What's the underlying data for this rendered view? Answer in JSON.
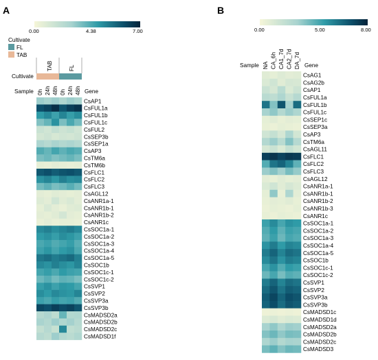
{
  "chart_data": [
    {
      "type": "heatmap",
      "panel_label": "A",
      "colorbar": {
        "min": 0.0,
        "max": 7.0,
        "ticks": [
          "0.00",
          "4.38",
          "7.00"
        ]
      },
      "annotation": {
        "legend_title": "Cultivate",
        "legend_items": [
          {
            "label": "FL",
            "color": "#5b9aa0"
          },
          {
            "label": "TAB",
            "color": "#e8b898"
          }
        ],
        "row_label": "Cultivate",
        "groups": [
          {
            "label": "TAB",
            "span": 3,
            "color": "#e8b898"
          },
          {
            "label": "FL",
            "span": 3,
            "color": "#5b9aa0"
          }
        ]
      },
      "sample_label": "Sample",
      "gene_label": "Gene",
      "columns": [
        "0h",
        "24h",
        "48h",
        "0h",
        "24h",
        "48h"
      ],
      "rows": [
        "CsAP1",
        "CsFUL1a",
        "CsFUL1b",
        "CsFUL1c",
        "CsFUL2",
        "CsSEP3b",
        "CsSEP1a",
        "CsAP3",
        "CsTM6a",
        "CsTM6b",
        "CsFLC1",
        "CsFLC2",
        "CsFLC3",
        "CsAGL12",
        "CsANR1a-1",
        "CsANR1b-1",
        "CsANR1b-2",
        "CsANR1c",
        "CsSOC1a-1",
        "CsSOC1a-2",
        "CsSOC1a-3",
        "CsSOC1a-4",
        "CsSOC1a-5",
        "CsSOC1b",
        "CsSOC1c-1",
        "CsSOC1c-2",
        "CsSVP1",
        "CsSVP2",
        "CsSVP3a",
        "CsSVP3b",
        "CsMADSD2a",
        "CsMADSD2b",
        "CsMADSD2c",
        "CsMADSD1f"
      ],
      "values": [
        [
          2.6,
          2.4,
          2.6,
          2.2,
          2.6,
          2.4
        ],
        [
          5.9,
          6.2,
          6.7,
          5.8,
          6.3,
          6.6
        ],
        [
          4.2,
          4.6,
          4.0,
          4.7,
          4.1,
          4.5
        ],
        [
          3.0,
          3.4,
          4.4,
          3.1,
          3.8,
          3.2
        ],
        [
          1.4,
          1.2,
          1.6,
          1.3,
          1.5,
          1.2
        ],
        [
          1.1,
          1.3,
          1.0,
          1.2,
          1.1,
          1.3
        ],
        [
          2.3,
          2.0,
          2.4,
          2.1,
          2.3,
          2.0
        ],
        [
          3.7,
          3.4,
          3.9,
          3.5,
          3.8,
          3.6
        ],
        [
          3.1,
          3.3,
          3.0,
          3.2,
          3.4,
          3.1
        ],
        [
          0.5,
          0.4,
          0.6,
          0.5,
          0.4,
          0.5
        ],
        [
          5.7,
          5.9,
          5.6,
          5.8,
          5.9,
          5.7
        ],
        [
          4.4,
          4.7,
          4.3,
          4.8,
          4.5,
          4.6
        ],
        [
          3.2,
          3.5,
          3.1,
          3.3,
          3.6,
          3.2
        ],
        [
          0.6,
          0.5,
          0.7,
          0.6,
          0.5,
          0.6
        ],
        [
          0.8,
          0.6,
          1.2,
          0.7,
          0.9,
          0.6
        ],
        [
          0.5,
          0.9,
          0.6,
          0.4,
          0.7,
          0.8
        ],
        [
          0.6,
          0.5,
          0.7,
          1.1,
          0.6,
          0.5
        ],
        [
          0.4,
          0.6,
          0.4,
          0.5,
          0.5,
          0.4
        ],
        [
          4.6,
          4.8,
          4.5,
          4.7,
          4.9,
          4.6
        ],
        [
          4.2,
          4.4,
          4.1,
          4.5,
          4.3,
          4.0
        ],
        [
          3.8,
          4.0,
          3.7,
          3.9,
          4.1,
          3.6
        ],
        [
          4.0,
          4.3,
          3.9,
          4.2,
          4.4,
          3.8
        ],
        [
          5.0,
          5.2,
          4.9,
          5.1,
          5.3,
          4.8
        ],
        [
          4.6,
          4.4,
          4.8,
          4.5,
          4.3,
          4.7
        ],
        [
          3.9,
          4.1,
          3.8,
          4.2,
          4.0,
          3.9
        ],
        [
          3.3,
          3.6,
          3.2,
          3.5,
          3.4,
          3.1
        ],
        [
          4.1,
          4.4,
          4.0,
          4.3,
          4.2,
          3.9
        ],
        [
          4.5,
          4.2,
          4.6,
          4.4,
          4.3,
          4.7
        ],
        [
          4.0,
          3.8,
          4.1,
          3.9,
          4.0,
          3.7
        ],
        [
          6.1,
          5.9,
          6.3,
          6.0,
          6.2,
          5.8
        ],
        [
          2.0,
          2.3,
          1.8,
          3.4,
          2.1,
          2.2
        ],
        [
          2.4,
          2.1,
          2.6,
          2.2,
          2.5,
          2.0
        ],
        [
          1.6,
          2.0,
          1.5,
          4.6,
          1.7,
          1.9
        ],
        [
          2.0,
          1.8,
          2.6,
          2.1,
          1.9,
          2.2
        ]
      ]
    },
    {
      "type": "heatmap",
      "panel_label": "B",
      "colorbar": {
        "min": 0.0,
        "max": 8.0,
        "ticks": [
          "0.00",
          "5.00",
          "8.00"
        ]
      },
      "sample_label": "Sample",
      "gene_label": "Gene",
      "columns": [
        "NA",
        "CA_6h",
        "CA1_7d",
        "CA2_7d",
        "DA_7d"
      ],
      "rows": [
        "CsAG1",
        "CsAG2b",
        "CsAP1",
        "CsFUL1a",
        "CsFUL1b",
        "CsFUL1c",
        "CsSEP1c",
        "CsSEP3a",
        "CsAP3",
        "CsTM6a",
        "CsAGL11",
        "CsFLC1",
        "CsFLC2",
        "CsFLC3",
        "CsAGL12",
        "CsANR1a-1",
        "CsANR1b-1",
        "CsANR1b-2",
        "CsANR1b-3",
        "CsANR1c",
        "CsSOC1a-1",
        "CsSOC1a-2",
        "CsSOC1a-3",
        "CsSOC1a-4",
        "CsSOC1a-5",
        "CsSOC1b",
        "CsSOC1c-1",
        "CsSOC1c-2",
        "CsSVP1",
        "CsSVP2",
        "CsSVP3a",
        "CsSVP3b",
        "CsMADSD1c",
        "CsMADSD1d",
        "CsMADSD2a",
        "CsMADSD2b",
        "CsMADSD2c",
        "CsMADSD3"
      ],
      "values": [
        [
          0.8,
          0.6,
          0.9,
          0.7,
          0.8
        ],
        [
          1.0,
          1.4,
          0.8,
          1.2,
          1.1
        ],
        [
          1.6,
          1.2,
          2.2,
          1.0,
          1.5
        ],
        [
          2.2,
          2.0,
          2.6,
          1.7,
          2.3
        ],
        [
          5.8,
          3.4,
          6.6,
          2.8,
          6.0
        ],
        [
          2.8,
          3.2,
          2.4,
          3.0,
          2.6
        ],
        [
          0.6,
          0.8,
          0.5,
          0.7,
          0.6
        ],
        [
          0.5,
          0.4,
          0.6,
          0.5,
          0.4
        ],
        [
          1.4,
          1.8,
          1.2,
          2.6,
          1.3
        ],
        [
          2.4,
          3.0,
          2.2,
          3.4,
          2.3
        ],
        [
          1.2,
          1.6,
          1.0,
          1.8,
          1.3
        ],
        [
          7.2,
          7.5,
          7.1,
          7.4,
          7.3
        ],
        [
          4.2,
          5.8,
          6.2,
          5.4,
          4.0
        ],
        [
          3.0,
          3.4,
          2.9,
          3.6,
          3.1
        ],
        [
          0.7,
          0.5,
          0.8,
          0.6,
          0.7
        ],
        [
          1.0,
          1.4,
          0.8,
          1.2,
          0.9
        ],
        [
          0.6,
          3.2,
          0.5,
          2.6,
          0.7
        ],
        [
          0.5,
          0.7,
          0.6,
          0.8,
          0.5
        ],
        [
          0.4,
          0.6,
          0.5,
          0.4,
          0.6
        ],
        [
          0.5,
          0.4,
          0.6,
          0.5,
          0.4
        ],
        [
          4.6,
          5.2,
          4.4,
          5.0,
          4.8
        ],
        [
          4.2,
          4.8,
          4.0,
          4.6,
          4.4
        ],
        [
          4.0,
          4.6,
          3.8,
          4.4,
          4.2
        ],
        [
          5.0,
          5.6,
          4.8,
          5.4,
          5.2
        ],
        [
          5.6,
          6.2,
          5.4,
          6.0,
          5.8
        ],
        [
          5.2,
          5.8,
          5.0,
          5.6,
          5.4
        ],
        [
          4.4,
          5.0,
          4.2,
          4.8,
          4.6
        ],
        [
          3.8,
          4.4,
          3.6,
          4.2,
          4.0
        ],
        [
          5.6,
          6.2,
          5.4,
          6.0,
          5.8
        ],
        [
          6.0,
          6.6,
          5.8,
          6.4,
          6.2
        ],
        [
          6.4,
          7.0,
          6.2,
          6.8,
          6.6
        ],
        [
          6.2,
          6.8,
          6.0,
          6.6,
          6.4
        ],
        [
          0.3,
          0.4,
          0.3,
          0.4,
          0.3
        ],
        [
          0.9,
          1.1,
          0.8,
          1.0,
          0.9
        ],
        [
          2.8,
          3.2,
          2.6,
          3.0,
          2.9
        ],
        [
          3.4,
          3.8,
          3.2,
          3.6,
          3.5
        ],
        [
          2.6,
          3.0,
          2.4,
          2.8,
          2.7
        ],
        [
          3.6,
          4.0,
          3.4,
          3.8,
          3.7
        ]
      ]
    }
  ]
}
